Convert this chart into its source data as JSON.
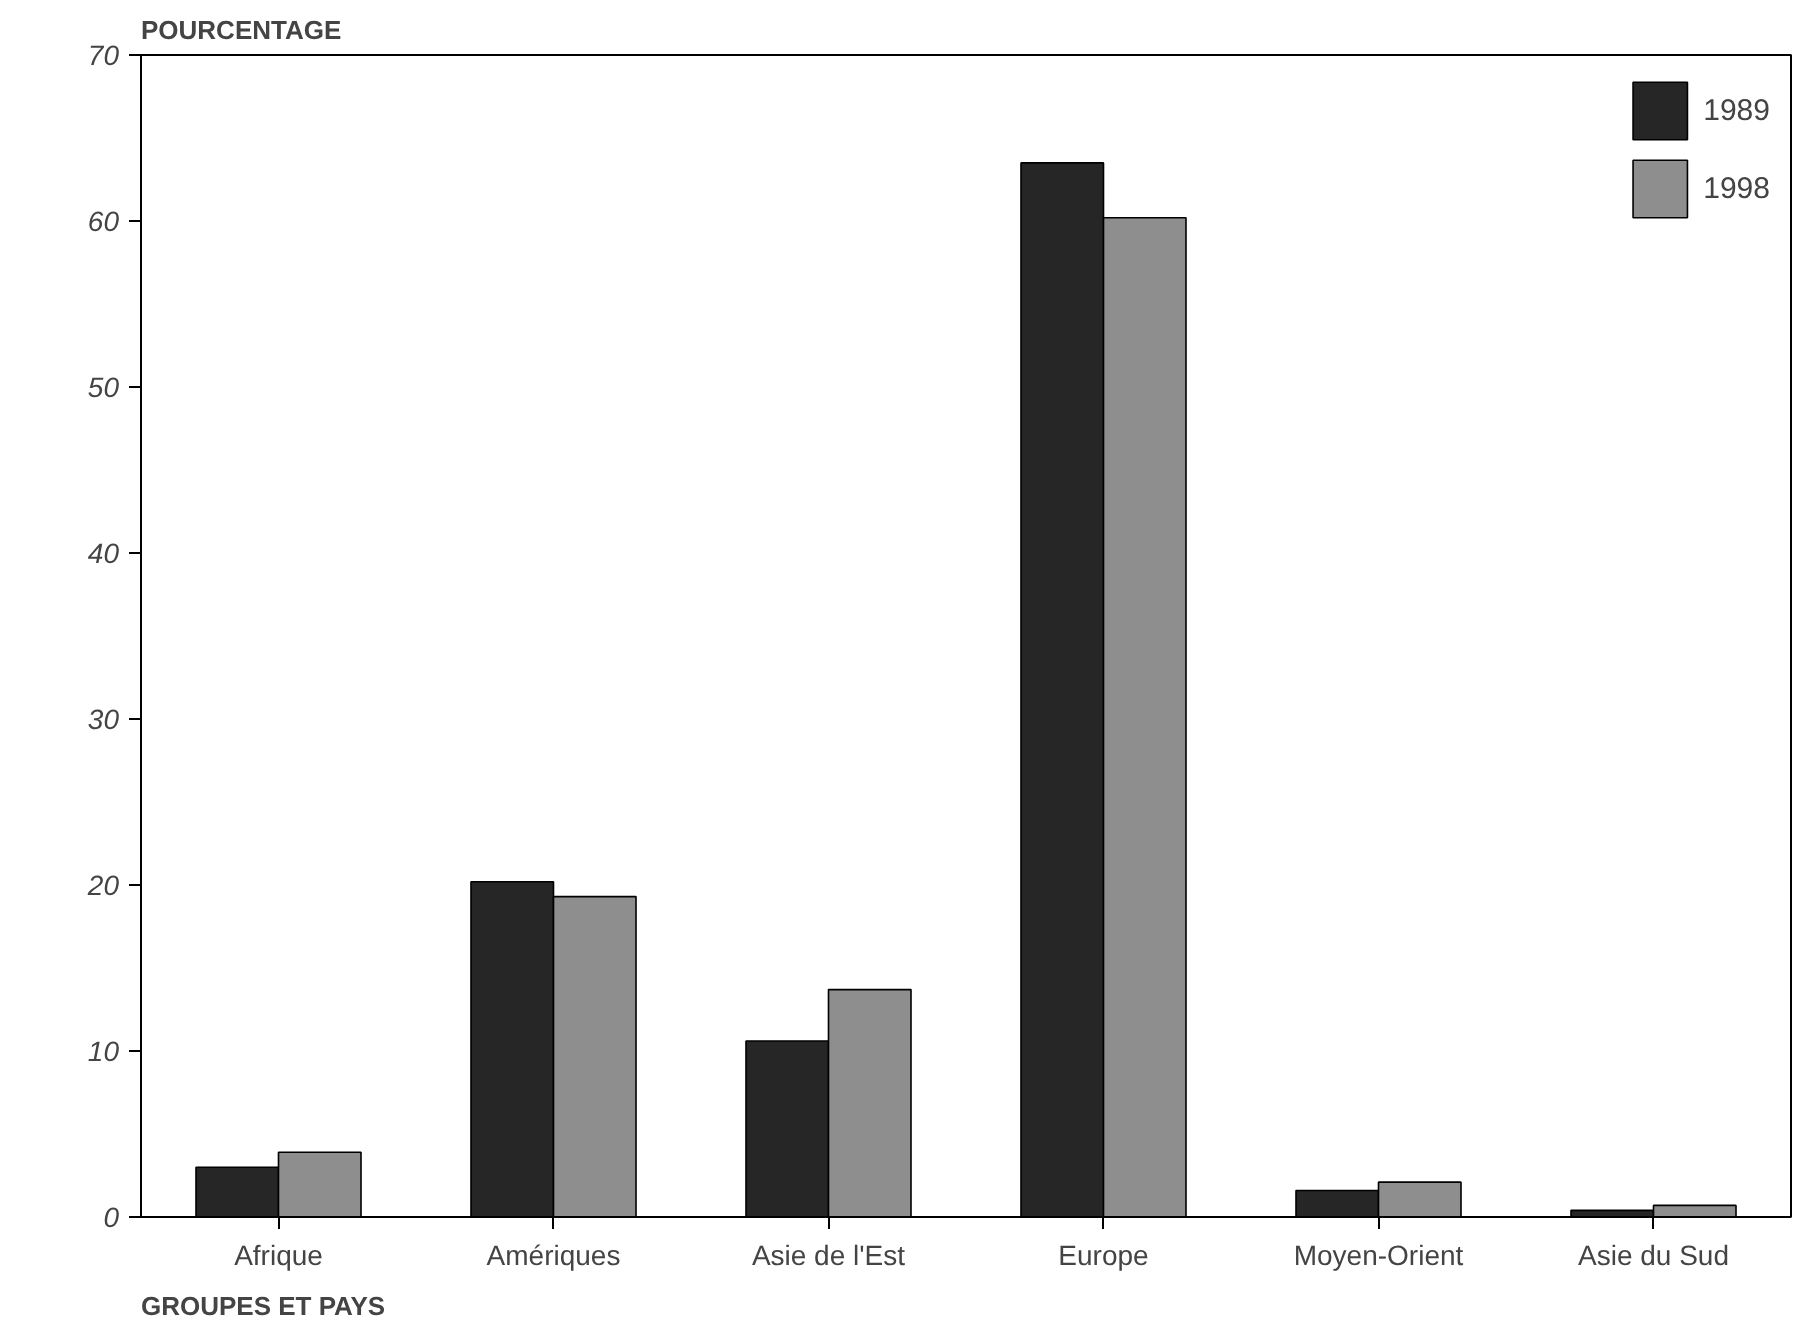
{
  "chart_data": {
    "type": "bar",
    "ylabel": "POURCENTAGE",
    "xlabel": "GROUPES ET PAYS",
    "categories": [
      "Afrique",
      "Amériques",
      "Asie de l'Est",
      "Europe",
      "Moyen-Orient",
      "Asie du Sud"
    ],
    "series": [
      {
        "name": "1989",
        "color": "#262626",
        "values": [
          3.0,
          20.2,
          10.6,
          63.5,
          1.6,
          0.4
        ]
      },
      {
        "name": "1998",
        "color": "#8e8e8e",
        "values": [
          3.9,
          19.3,
          13.7,
          60.2,
          2.1,
          0.7
        ]
      }
    ],
    "ylim": [
      0,
      70
    ],
    "yticks": [
      0,
      10,
      20,
      30,
      40,
      50,
      60,
      70
    ],
    "grid": false,
    "legend": "top right"
  }
}
